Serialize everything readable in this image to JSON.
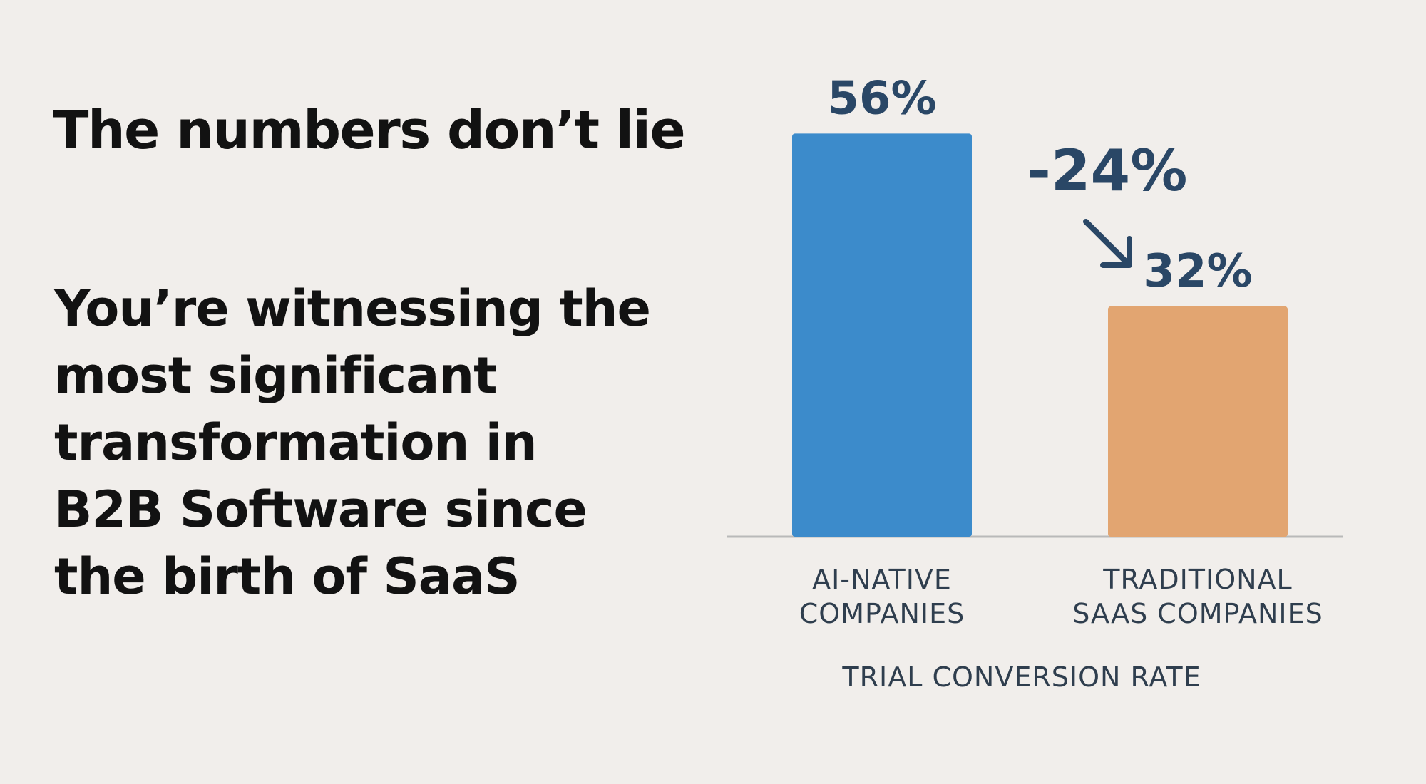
{
  "headline": "The numbers don’t lie",
  "subhead_lines": [
    "You’re witnessing the",
    "most significant",
    "transformation in",
    "B2B Software since",
    "the birth of SaaS"
  ],
  "chart_data": {
    "type": "bar",
    "title": "",
    "xlabel": "TRIAL CONVERSION RATE",
    "ylabel": "",
    "ylim": [
      0,
      60
    ],
    "grid": false,
    "categories": [
      [
        "AI-NATIVE",
        "COMPANIES"
      ],
      [
        "TRADITIONAL",
        "SAAS COMPANIES"
      ]
    ],
    "values": [
      56,
      32
    ],
    "value_labels": [
      "56%",
      "32%"
    ],
    "colors": [
      "#3c8bcb",
      "#e2a571"
    ],
    "annotation": {
      "text": "-24%",
      "arrow": "down-right",
      "color": "#2a4766"
    },
    "axis_color": "#b9b9b9",
    "label_color": "#2f3e4e"
  }
}
